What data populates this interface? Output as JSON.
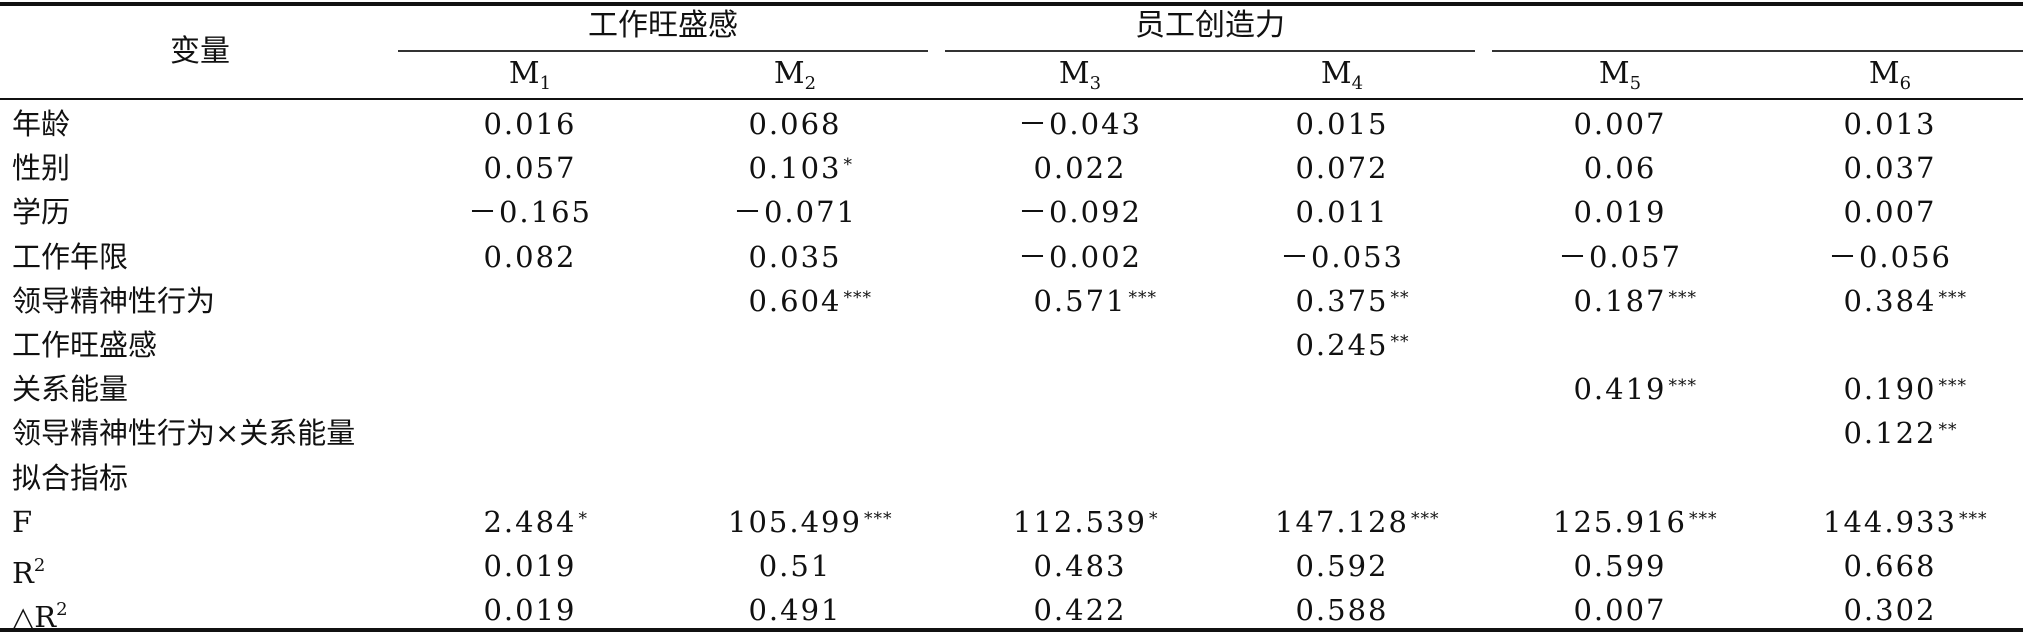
{
  "header": {
    "variable": "变量",
    "groups": [
      {
        "label": "工作旺盛感",
        "span": [
          0,
          1
        ]
      },
      {
        "label": "员工创造力",
        "span": [
          2,
          3
        ]
      },
      {
        "label": "",
        "span": [
          4,
          5
        ]
      }
    ],
    "models": [
      {
        "base": "M",
        "sub": "1"
      },
      {
        "base": "M",
        "sub": "2"
      },
      {
        "base": "M",
        "sub": "3"
      },
      {
        "base": "M",
        "sub": "4"
      },
      {
        "base": "M",
        "sub": "5"
      },
      {
        "base": "M",
        "sub": "6"
      }
    ]
  },
  "rows": [
    {
      "label": "年龄",
      "cells": [
        {
          "v": "0.016",
          "s": ""
        },
        {
          "v": "0.068",
          "s": ""
        },
        {
          "v": "－0.043",
          "s": ""
        },
        {
          "v": "0.015",
          "s": ""
        },
        {
          "v": "0.007",
          "s": ""
        },
        {
          "v": "0.013",
          "s": ""
        }
      ]
    },
    {
      "label": "性别",
      "cells": [
        {
          "v": "0.057",
          "s": ""
        },
        {
          "v": "0.103",
          "s": "*"
        },
        {
          "v": "0.022",
          "s": ""
        },
        {
          "v": "0.072",
          "s": ""
        },
        {
          "v": "0.06",
          "s": ""
        },
        {
          "v": "0.037",
          "s": ""
        }
      ]
    },
    {
      "label": "学历",
      "cells": [
        {
          "v": "－0.165",
          "s": ""
        },
        {
          "v": "－0.071",
          "s": ""
        },
        {
          "v": "－0.092",
          "s": ""
        },
        {
          "v": "0.011",
          "s": ""
        },
        {
          "v": "0.019",
          "s": ""
        },
        {
          "v": "0.007",
          "s": ""
        }
      ]
    },
    {
      "label": "工作年限",
      "cells": [
        {
          "v": "0.082",
          "s": ""
        },
        {
          "v": "0.035",
          "s": ""
        },
        {
          "v": "－0.002",
          "s": ""
        },
        {
          "v": "－0.053",
          "s": ""
        },
        {
          "v": "－0.057",
          "s": ""
        },
        {
          "v": "－0.056",
          "s": ""
        }
      ]
    },
    {
      "label": "领导精神性行为",
      "cells": [
        {
          "v": "",
          "s": ""
        },
        {
          "v": "0.604",
          "s": "***"
        },
        {
          "v": "0.571",
          "s": "***"
        },
        {
          "v": "0.375",
          "s": "**"
        },
        {
          "v": "0.187",
          "s": "***"
        },
        {
          "v": "0.384",
          "s": "***"
        }
      ]
    },
    {
      "label": "工作旺盛感",
      "cells": [
        {
          "v": "",
          "s": ""
        },
        {
          "v": "",
          "s": ""
        },
        {
          "v": "",
          "s": ""
        },
        {
          "v": "0.245",
          "s": "**"
        },
        {
          "v": "",
          "s": ""
        },
        {
          "v": "",
          "s": ""
        }
      ]
    },
    {
      "label": "关系能量",
      "cells": [
        {
          "v": "",
          "s": ""
        },
        {
          "v": "",
          "s": ""
        },
        {
          "v": "",
          "s": ""
        },
        {
          "v": "",
          "s": ""
        },
        {
          "v": "0.419",
          "s": "***"
        },
        {
          "v": "0.190",
          "s": "***"
        }
      ]
    },
    {
      "label": "领导精神性行为×关系能量",
      "cells": [
        {
          "v": "",
          "s": ""
        },
        {
          "v": "",
          "s": ""
        },
        {
          "v": "",
          "s": ""
        },
        {
          "v": "",
          "s": ""
        },
        {
          "v": "",
          "s": ""
        },
        {
          "v": "0.122",
          "s": "**"
        }
      ]
    },
    {
      "label": "拟合指标",
      "cells": [
        {
          "v": "",
          "s": ""
        },
        {
          "v": "",
          "s": ""
        },
        {
          "v": "",
          "s": ""
        },
        {
          "v": "",
          "s": ""
        },
        {
          "v": "",
          "s": ""
        },
        {
          "v": "",
          "s": ""
        }
      ]
    },
    {
      "label": "F",
      "cells": [
        {
          "v": "2.484",
          "s": "*"
        },
        {
          "v": "105.499",
          "s": "***"
        },
        {
          "v": "112.539",
          "s": "*"
        },
        {
          "v": "147.128",
          "s": "***"
        },
        {
          "v": "125.916",
          "s": "***"
        },
        {
          "v": "144.933",
          "s": "***"
        }
      ]
    },
    {
      "label": "R",
      "label_sup": "2",
      "cells": [
        {
          "v": "0.019",
          "s": ""
        },
        {
          "v": "0.51",
          "s": ""
        },
        {
          "v": "0.483",
          "s": ""
        },
        {
          "v": "0.592",
          "s": ""
        },
        {
          "v": "0.599",
          "s": ""
        },
        {
          "v": "0.668",
          "s": ""
        }
      ]
    },
    {
      "label": "△R",
      "label_sup": "2",
      "cells": [
        {
          "v": "0.019",
          "s": ""
        },
        {
          "v": "0.491",
          "s": ""
        },
        {
          "v": "0.422",
          "s": ""
        },
        {
          "v": "0.588",
          "s": ""
        },
        {
          "v": "0.007",
          "s": ""
        },
        {
          "v": "0.302",
          "s": ""
        }
      ]
    }
  ]
}
